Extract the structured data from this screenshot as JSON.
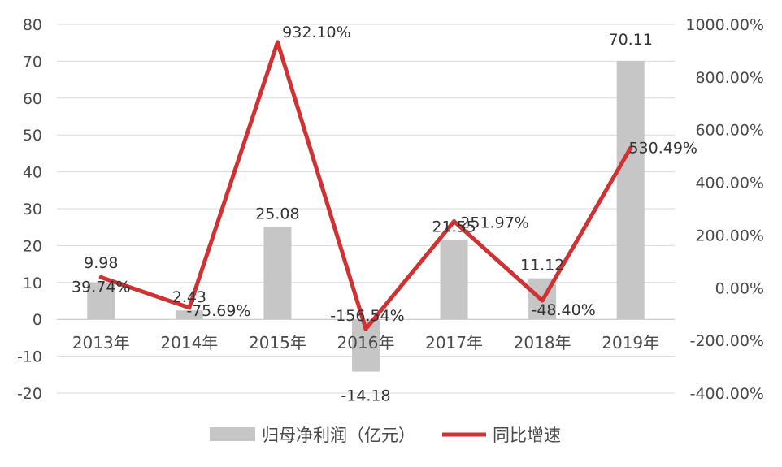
{
  "chart_data": {
    "type": "bar",
    "categories": [
      "2013年",
      "2014年",
      "2015年",
      "2016年",
      "2017年",
      "2018年",
      "2019年"
    ],
    "series": [
      {
        "name": "归母净利润（亿元）",
        "type": "bar",
        "axis": "left",
        "values": [
          9.98,
          2.43,
          25.08,
          -14.18,
          21.55,
          11.12,
          70.11
        ],
        "labels": [
          "9.98",
          "2.43",
          "25.08",
          "-14.18",
          "21.55",
          "11.12",
          "70.11"
        ]
      },
      {
        "name": "同比增速",
        "type": "line",
        "axis": "right",
        "values": [
          39.74,
          -75.69,
          932.1,
          -156.54,
          251.97,
          -48.4,
          530.49
        ],
        "labels": [
          "39.74%",
          "-75.69%",
          "932.10%",
          "-156.54%",
          "251.97%",
          "-48.40%",
          "530.49%"
        ]
      }
    ],
    "y_left": {
      "ylim": [
        -20,
        80
      ],
      "ticks": [
        "80",
        "70",
        "60",
        "50",
        "40",
        "30",
        "20",
        "10",
        "0",
        "-10",
        "-20"
      ]
    },
    "y_right": {
      "ylim": [
        -400,
        1000
      ],
      "ticks": [
        "1000.00%",
        "800.00%",
        "600.00%",
        "400.00%",
        "200.00%",
        "0.00%",
        "-200.00%",
        "-400.00%"
      ]
    },
    "grid": true,
    "legend_position": "bottom",
    "colors": {
      "bar": "#c6c6c6",
      "line": "#d03233",
      "grid": "#d9d9d9",
      "text": "#4a4a4a"
    }
  }
}
